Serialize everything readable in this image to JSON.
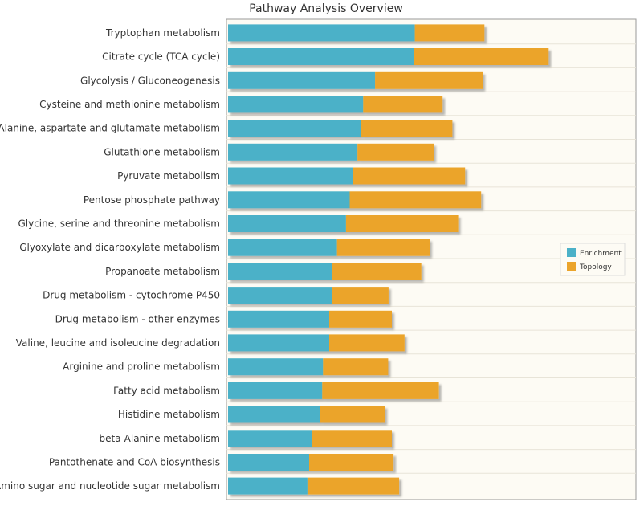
{
  "chart_data": {
    "type": "bar",
    "orientation": "horizontal",
    "stacked": true,
    "title": "Pathway Analysis Overview",
    "xlabel": "",
    "ylabel": "",
    "xlim": [
      0,
      100
    ],
    "grid": true,
    "legend_position": "right",
    "categories": [
      "Tryptophan metabolism",
      "Citrate cycle (TCA cycle)",
      "Glycolysis / Gluconeogenesis",
      "Cysteine and methionine metabolism",
      "Alanine, aspartate and glutamate metabolism",
      "Glutathione metabolism",
      "Pyruvate metabolism",
      "Pentose phosphate pathway",
      "Glycine, serine and threonine metabolism",
      "Glyoxylate and dicarboxylate metabolism",
      "Propanoate metabolism",
      "Drug metabolism - cytochrome P450",
      "Drug metabolism - other enzymes",
      "Valine, leucine and isoleucine degradation",
      "Arginine and proline metabolism",
      "Fatty acid metabolism",
      "Histidine metabolism",
      "beta-Alanine metabolism",
      "Pantothenate and CoA biosynthesis",
      "Amino sugar and nucleotide sugar metabolism"
    ],
    "series": [
      {
        "name": "Enrichment",
        "color": "#4BB1C8",
        "values": [
          45.6,
          45.4,
          35.9,
          33.0,
          32.4,
          31.6,
          30.5,
          29.7,
          28.8,
          26.6,
          25.5,
          25.3,
          24.7,
          24.7,
          23.2,
          23.0,
          22.4,
          20.4,
          19.8,
          19.4
        ]
      },
      {
        "name": "Topology",
        "color": "#EBA42B",
        "values": [
          17.0,
          32.9,
          26.3,
          19.4,
          22.4,
          18.6,
          27.4,
          32.1,
          27.4,
          22.6,
          21.7,
          13.9,
          15.3,
          18.4,
          15.9,
          28.5,
          15.9,
          19.6,
          20.6,
          22.4
        ]
      }
    ]
  }
}
